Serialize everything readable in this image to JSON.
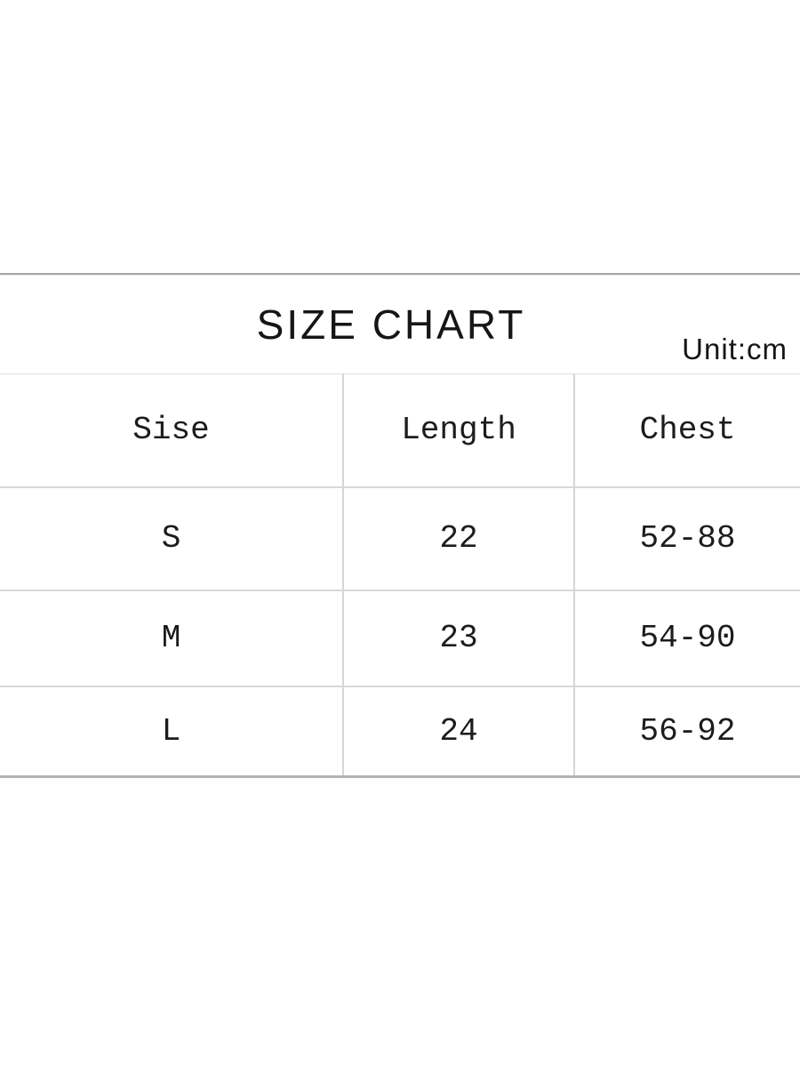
{
  "header": {
    "title": "SIZE CHART",
    "unit_label": "Unit:cm"
  },
  "chart_data": {
    "type": "table",
    "title": "SIZE CHART",
    "unit": "cm",
    "columns": [
      "Sise",
      "Length",
      "Chest"
    ],
    "rows": [
      [
        "S",
        "22",
        "52-88"
      ],
      [
        "M",
        "23",
        "54-90"
      ],
      [
        "L",
        "24",
        "56-92"
      ]
    ]
  },
  "style_colors": {
    "background": "#ffffff",
    "text": "#1c1c1c",
    "top_rule": "#a5a5a5",
    "table_inner_line": "#d9d9d9",
    "table_bottom_line": "#b2b2b2"
  }
}
